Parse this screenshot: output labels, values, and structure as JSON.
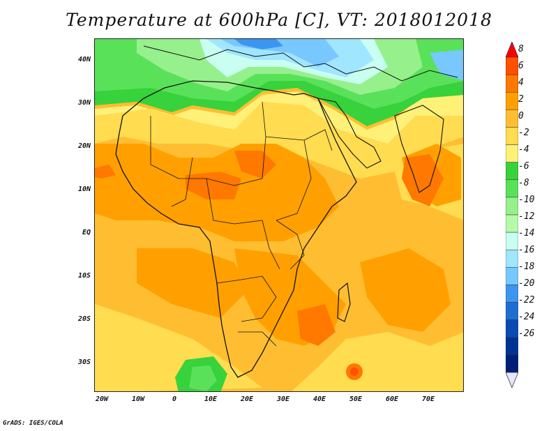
{
  "title": "Temperature at 600hPa [C], VT: 2018012018",
  "credit": "GrADS: IGES/COLA",
  "y_axis_labels": [
    "40N",
    "30N",
    "20N",
    "10N",
    "EQ",
    "10S",
    "20S",
    "30S"
  ],
  "x_axis_labels": [
    "20W",
    "10W",
    "0",
    "10E",
    "20E",
    "30E",
    "40E",
    "50E",
    "60E",
    "70E"
  ],
  "colorbar": {
    "labels": [
      "8",
      "6",
      "4",
      "2",
      "0",
      "-2",
      "-4",
      "-6",
      "-8",
      "-10",
      "-12",
      "-14",
      "-16",
      "-18",
      "-20",
      "-22",
      "-24",
      "-26"
    ],
    "colors": [
      "#ff0000",
      "#ff5000",
      "#ff7800",
      "#ffa000",
      "#ffbe32",
      "#ffdc50",
      "#fff078",
      "#37d23c",
      "#5ae15a",
      "#96f08c",
      "#b4faaa",
      "#c8fff0",
      "#a0e6ff",
      "#78c8ff",
      "#3c96f0",
      "#1e6ed2",
      "#0a4bb4",
      "#003296",
      "#001e78",
      "#e6e6ff"
    ]
  }
}
